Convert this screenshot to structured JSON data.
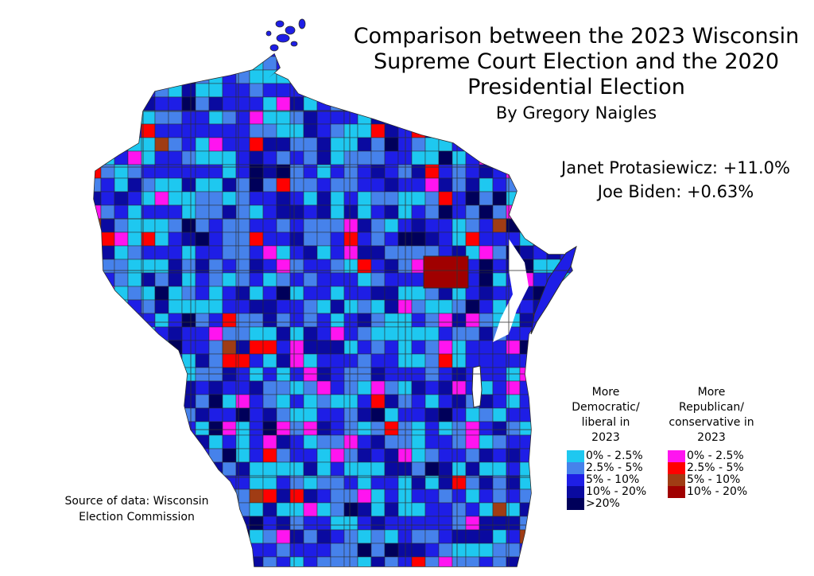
{
  "title": {
    "lines": [
      "Comparison between the 2023 Wisconsin",
      "Supreme Court Election and the 2020",
      "Presidential Election"
    ],
    "byline": "By Gregory Naigles"
  },
  "results": [
    "Janet Protasiewicz: +11.0%",
    "Joe Biden: +0.63%"
  ],
  "source": {
    "lines": [
      "Source of data: Wisconsin",
      "Election Commission"
    ]
  },
  "legend": {
    "democratic": {
      "heading": [
        "More",
        "Democratic/",
        "liberal in",
        "2023"
      ],
      "items": [
        {
          "label": "0% - 2.5%",
          "color": "#1ec8f0"
        },
        {
          "label": "2.5% - 5%",
          "color": "#4682eb"
        },
        {
          "label": "5% - 10%",
          "color": "#1e1ee6"
        },
        {
          "label": "10% - 20%",
          "color": "#0a0aa0"
        },
        {
          "label": ">20%",
          "color": "#00005a"
        }
      ]
    },
    "republican": {
      "heading": [
        "More",
        "Republican/",
        "conservative in",
        "2023"
      ],
      "items": [
        {
          "label": "0% - 2.5%",
          "color": "#ff14f0"
        },
        {
          "label": "2.5% - 5%",
          "color": "#ff0000"
        },
        {
          "label": "5% - 10%",
          "color": "#a03c14"
        },
        {
          "label": "10% - 20%",
          "color": "#a00000"
        }
      ]
    }
  },
  "map": {
    "base_color": "#1e1ee6",
    "border_color": "#2a2a2a"
  }
}
